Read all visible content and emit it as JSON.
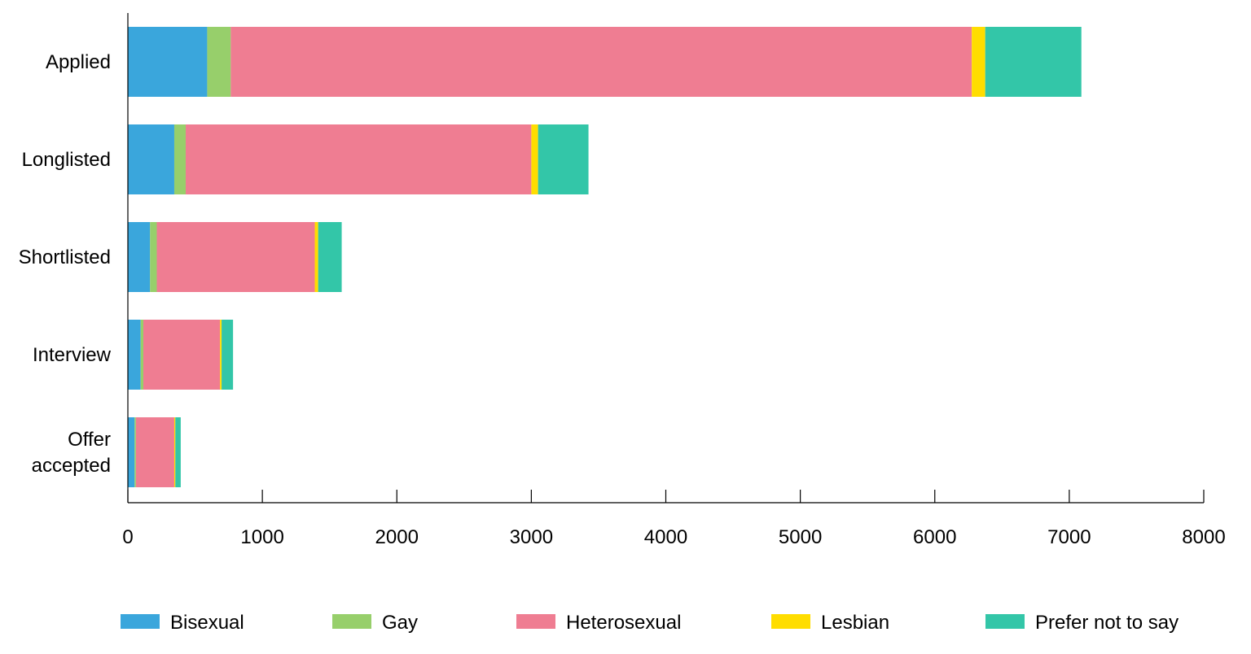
{
  "chart_data": {
    "type": "bar",
    "orientation": "horizontal",
    "stacked": true,
    "title": "",
    "xlabel": "",
    "ylabel": "",
    "xlim": [
      0,
      8000
    ],
    "x_ticks": [
      0,
      1000,
      2000,
      3000,
      4000,
      5000,
      6000,
      7000,
      8000
    ],
    "x_tick_labels": [
      "0",
      "1000",
      "2000",
      "3000",
      "4000",
      "5000",
      "6000",
      "7000",
      "8000"
    ],
    "grid": false,
    "legend_position": "bottom",
    "categories": [
      "Applied",
      "Longlisted",
      "Shortlisted",
      "Interview",
      "Offer accepted"
    ],
    "category_label_lines": [
      [
        "Applied"
      ],
      [
        "Longlisted"
      ],
      [
        "Shortlisted"
      ],
      [
        "Interview"
      ],
      [
        "Offer",
        "accepted"
      ]
    ],
    "series": [
      {
        "name": "Bisexual",
        "color": "#3aa6dc",
        "values": [
          590,
          345,
          165,
          95,
          50
        ]
      },
      {
        "name": "Gay",
        "color": "#97cf6b",
        "values": [
          175,
          85,
          50,
          20,
          10
        ]
      },
      {
        "name": "Heterosexual",
        "color": "#ef7d92",
        "values": [
          5510,
          2570,
          1175,
          570,
          285
        ]
      },
      {
        "name": "Lesbian",
        "color": "#ffdd00",
        "values": [
          100,
          50,
          25,
          12,
          8
        ]
      },
      {
        "name": "Prefer not to say",
        "color": "#33c6a8",
        "values": [
          715,
          375,
          175,
          85,
          40
        ]
      }
    ]
  }
}
